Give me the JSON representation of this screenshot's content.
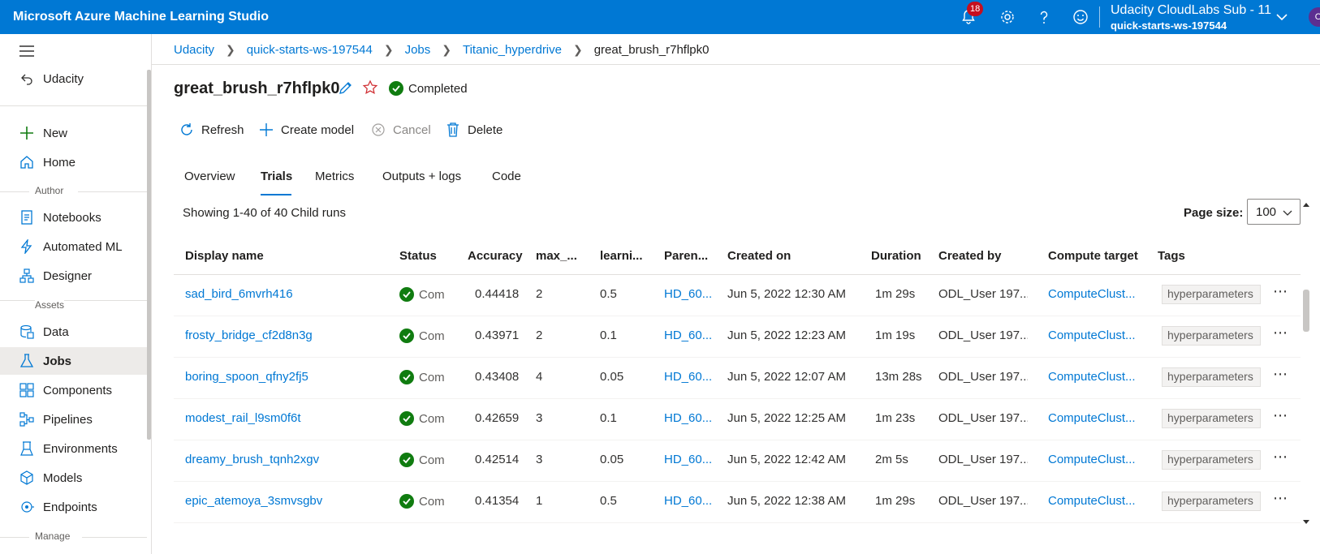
{
  "app": {
    "title": "Microsoft Azure Machine Learning Studio",
    "notification_count": "18",
    "subscription": "Udacity CloudLabs Sub - 11",
    "workspace": "quick-starts-ws-197544",
    "avatar_initial": "O"
  },
  "sidebar": {
    "back_label": "Udacity",
    "items_top": [
      {
        "label": "New",
        "icon": "plus-icon"
      },
      {
        "label": "Home",
        "icon": "home-icon"
      }
    ],
    "section_author": "Author",
    "items_author": [
      {
        "label": "Notebooks",
        "icon": "notebook-icon"
      },
      {
        "label": "Automated ML",
        "icon": "automl-icon"
      },
      {
        "label": "Designer",
        "icon": "designer-icon"
      }
    ],
    "section_assets": "Assets",
    "items_assets": [
      {
        "label": "Data",
        "icon": "data-icon"
      },
      {
        "label": "Jobs",
        "icon": "flask-icon",
        "active": true
      },
      {
        "label": "Components",
        "icon": "components-icon"
      },
      {
        "label": "Pipelines",
        "icon": "pipelines-icon"
      },
      {
        "label": "Environments",
        "icon": "environments-icon"
      },
      {
        "label": "Models",
        "icon": "models-icon"
      },
      {
        "label": "Endpoints",
        "icon": "endpoints-icon"
      }
    ],
    "section_manage": "Manage"
  },
  "breadcrumb": [
    "Udacity",
    "quick-starts-ws-197544",
    "Jobs",
    "Titanic_hyperdrive",
    "great_brush_r7hflpk0"
  ],
  "run": {
    "name": "great_brush_r7hflpk0",
    "status": "Completed"
  },
  "commands": {
    "refresh": "Refresh",
    "create_model": "Create model",
    "cancel": "Cancel",
    "delete": "Delete"
  },
  "tabs": [
    "Overview",
    "Trials",
    "Metrics",
    "Outputs + logs",
    "Code"
  ],
  "active_tab": "Trials",
  "list": {
    "showing": "Showing 1-40 of 40 Child runs",
    "page_size_label": "Page size:",
    "page_size": "100"
  },
  "columns": [
    "Display name",
    "Status",
    "Accuracy",
    "max_...",
    "learni...",
    "Paren...",
    "Created on",
    "Duration",
    "Created by",
    "Compute target",
    "Tags"
  ],
  "rows": [
    {
      "name": "sad_bird_6mvrh416",
      "status": "Com",
      "accuracy": "0.44418",
      "max": "2",
      "lr": "0.5",
      "parent": "HD_60...",
      "created_on": "Jun 5, 2022 12:30 AM",
      "duration": "1m 29s",
      "created_by": "ODL_User 197...",
      "compute": "ComputeClust...",
      "tag": "hyperparameters"
    },
    {
      "name": "frosty_bridge_cf2d8n3g",
      "status": "Com",
      "accuracy": "0.43971",
      "max": "2",
      "lr": "0.1",
      "parent": "HD_60...",
      "created_on": "Jun 5, 2022 12:23 AM",
      "duration": "1m 19s",
      "created_by": "ODL_User 197...",
      "compute": "ComputeClust...",
      "tag": "hyperparameters"
    },
    {
      "name": "boring_spoon_qfny2fj5",
      "status": "Com",
      "accuracy": "0.43408",
      "max": "4",
      "lr": "0.05",
      "parent": "HD_60...",
      "created_on": "Jun 5, 2022 12:07 AM",
      "duration": "13m 28s",
      "created_by": "ODL_User 197...",
      "compute": "ComputeClust...",
      "tag": "hyperparameters"
    },
    {
      "name": "modest_rail_l9sm0f6t",
      "status": "Com",
      "accuracy": "0.42659",
      "max": "3",
      "lr": "0.1",
      "parent": "HD_60...",
      "created_on": "Jun 5, 2022 12:25 AM",
      "duration": "1m 23s",
      "created_by": "ODL_User 197...",
      "compute": "ComputeClust...",
      "tag": "hyperparameters"
    },
    {
      "name": "dreamy_brush_tqnh2xgv",
      "status": "Com",
      "accuracy": "0.42514",
      "max": "3",
      "lr": "0.05",
      "parent": "HD_60...",
      "created_on": "Jun 5, 2022 12:42 AM",
      "duration": "2m 5s",
      "created_by": "ODL_User 197...",
      "compute": "ComputeClust...",
      "tag": "hyperparameters"
    },
    {
      "name": "epic_atemoya_3smvsgbv",
      "status": "Com",
      "accuracy": "0.41354",
      "max": "1",
      "lr": "0.5",
      "parent": "HD_60...",
      "created_on": "Jun 5, 2022 12:38 AM",
      "duration": "1m 29s",
      "created_by": "ODL_User 197...",
      "compute": "ComputeClust...",
      "tag": "hyperparameters"
    }
  ],
  "colors": {
    "brand": "#0078d4",
    "link": "#0078d4",
    "success": "#107c10",
    "favorite": "#d13438",
    "badge": "#c50f1f"
  }
}
